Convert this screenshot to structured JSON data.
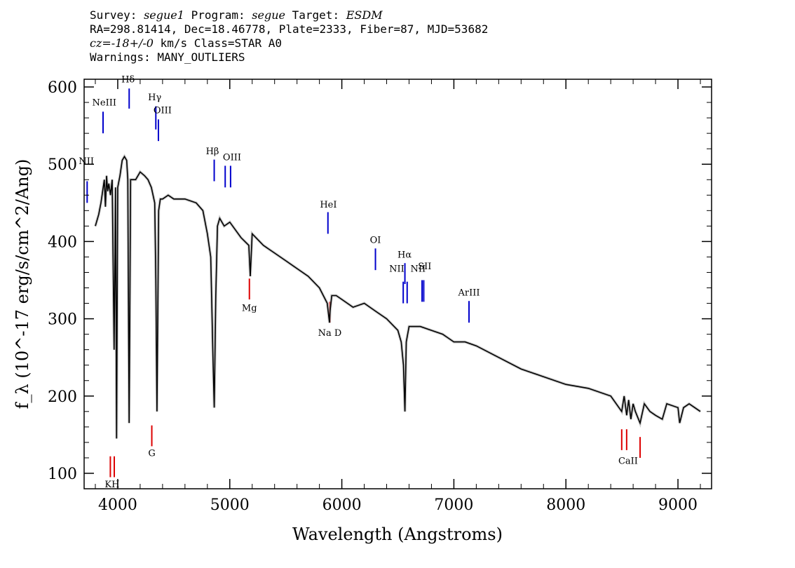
{
  "header": {
    "survey_label": "Survey:",
    "survey": "segue1",
    "program_label": "Program:",
    "program": "segue",
    "target_label": "Target:",
    "target": "ESDM",
    "coords": "RA=298.81414, Dec=18.46778, Plate=2333, Fiber=87, MJD=53682",
    "cz": "cz=-18+/-0",
    "cz_rest": "km/s Class=STAR A0",
    "warnings": "Warnings: MANY_OUTLIERS"
  },
  "chart_data": {
    "type": "line",
    "xlabel": "Wavelength (Angstroms)",
    "ylabel": "f_λ (10^-17 erg/s/cm^2/Ang)",
    "xlim": [
      3700,
      9300
    ],
    "ylim": [
      80,
      610
    ],
    "x_ticks": [
      4000,
      5000,
      6000,
      7000,
      8000,
      9000
    ],
    "y_ticks": [
      100,
      200,
      300,
      400,
      500,
      600
    ],
    "grid": false,
    "colors": {
      "spectrum": "#000000",
      "error": "#aaaaaa",
      "emission": "#0000cc",
      "absorption": "#dd0000"
    },
    "spectrum": {
      "x": [
        3800,
        3830,
        3850,
        3870,
        3880,
        3890,
        3900,
        3910,
        3920,
        3935,
        3950,
        3968,
        3980,
        3990,
        4000,
        4020,
        4040,
        4060,
        4080,
        4090,
        4102,
        4115,
        4130,
        4160,
        4200,
        4240,
        4270,
        4300,
        4330,
        4340,
        4350,
        4365,
        4380,
        4400,
        4450,
        4500,
        4600,
        4700,
        4760,
        4800,
        4830,
        4850,
        4861,
        4875,
        4890,
        4910,
        4950,
        5000,
        5100,
        5170,
        5183,
        5200,
        5300,
        5400,
        5500,
        5600,
        5700,
        5800,
        5870,
        5890,
        5895,
        5910,
        5950,
        6000,
        6100,
        6200,
        6300,
        6400,
        6500,
        6530,
        6550,
        6563,
        6575,
        6600,
        6700,
        6800,
        6900,
        7000,
        7100,
        7200,
        7400,
        7600,
        7700,
        7800,
        8000,
        8200,
        8400,
        8498,
        8520,
        8542,
        8560,
        8580,
        8600,
        8620,
        8662,
        8700,
        8750,
        8800,
        8860,
        8900,
        9000,
        9015,
        9050,
        9100,
        9150,
        9200
      ],
      "y": [
        420,
        435,
        450,
        470,
        480,
        445,
        485,
        465,
        475,
        460,
        480,
        260,
        470,
        145,
        470,
        485,
        505,
        510,
        505,
        480,
        165,
        480,
        480,
        480,
        490,
        485,
        480,
        470,
        450,
        350,
        180,
        440,
        455,
        455,
        460,
        455,
        455,
        450,
        440,
        410,
        380,
        250,
        185,
        330,
        420,
        430,
        420,
        425,
        405,
        395,
        355,
        410,
        395,
        385,
        375,
        365,
        355,
        340,
        320,
        295,
        310,
        330,
        330,
        325,
        315,
        320,
        310,
        300,
        285,
        270,
        240,
        180,
        270,
        290,
        290,
        285,
        280,
        270,
        270,
        265,
        250,
        235,
        230,
        225,
        215,
        210,
        200,
        180,
        200,
        175,
        195,
        170,
        190,
        180,
        165,
        190,
        180,
        175,
        170,
        190,
        185,
        165,
        185,
        190,
        185,
        180
      ]
    },
    "emission_lines": [
      {
        "label": "NeIII",
        "wavelength": 3869,
        "y1": 540,
        "y2": 568
      },
      {
        "label": "Hδ",
        "wavelength": 4102,
        "y1": 572,
        "y2": 598
      },
      {
        "label": "Hγ",
        "wavelength": 4340,
        "y1": 545,
        "y2": 575
      },
      {
        "label": "OIII",
        "wavelength": 4363,
        "y1": 530,
        "y2": 558
      },
      {
        "label": "Hβ",
        "wavelength": 4861,
        "y1": 478,
        "y2": 506
      },
      {
        "label": "OIII",
        "wavelength": 4959,
        "y1": 470,
        "y2": 498
      },
      {
        "label": "OIII",
        "wavelength": 5007,
        "y1": 470,
        "y2": 498
      },
      {
        "label": "HeI",
        "wavelength": 5876,
        "y1": 410,
        "y2": 438
      },
      {
        "label": "OI",
        "wavelength": 6300,
        "y1": 363,
        "y2": 391
      },
      {
        "label": "Hα",
        "wavelength": 6563,
        "y1": 345,
        "y2": 372
      },
      {
        "label": "NII",
        "wavelength": 6548,
        "y1": 320,
        "y2": 348
      },
      {
        "label": "NII",
        "wavelength": 6583,
        "y1": 320,
        "y2": 348
      },
      {
        "label": "SII",
        "wavelength": 6716,
        "y1": 322,
        "y2": 350
      },
      {
        "label": "SII",
        "wavelength": 6731,
        "y1": 322,
        "y2": 350
      },
      {
        "label": "ArIII",
        "wavelength": 7135,
        "y1": 295,
        "y2": 323
      },
      {
        "label": "NII",
        "wavelength": 3727,
        "y1": 450,
        "y2": 478
      }
    ],
    "absorption_lines": [
      {
        "label": "K",
        "wavelength": 3934,
        "y1": 95,
        "y2": 122
      },
      {
        "label": "H",
        "wavelength": 3969,
        "y1": 95,
        "y2": 122
      },
      {
        "label": "G",
        "wavelength": 4304,
        "y1": 135,
        "y2": 162
      },
      {
        "label": "Mg",
        "wavelength": 5175,
        "y1": 325,
        "y2": 352
      },
      {
        "label": "Na D",
        "wavelength": 5893,
        "y1": 295,
        "y2": 322
      },
      {
        "label": "CaII",
        "wavelength": 8498,
        "y1": 130,
        "y2": 157
      },
      {
        "label": "CaII",
        "wavelength": 8542,
        "y1": 130,
        "y2": 157
      },
      {
        "label": "CaII",
        "wavelength": 8662,
        "y1": 120,
        "y2": 147
      }
    ],
    "line_label_positions": {
      "NeIII": [
        3880,
        576
      ],
      "Hδ": [
        4092,
        606
      ],
      "Hγ": [
        4330,
        583
      ],
      "OIII_a": [
        4400,
        566
      ],
      "Hβ": [
        4845,
        513
      ],
      "OIII_b": [
        5020,
        505
      ],
      "HeI": [
        5880,
        444
      ],
      "OI": [
        6300,
        398
      ],
      "Hα": [
        6560,
        379
      ],
      "NII_a": [
        6490,
        361
      ],
      "NII_b": [
        6680,
        361
      ],
      "SII": [
        6740,
        364
      ],
      "ArIII": [
        7135,
        330
      ],
      "NII_c": [
        3720,
        500
      ],
      "KH": [
        3950,
        82
      ],
      "G": [
        4304,
        122
      ],
      "Mg": [
        5175,
        310
      ],
      "Na D": [
        5893,
        278
      ],
      "CaII": [
        8555,
        112
      ]
    }
  }
}
